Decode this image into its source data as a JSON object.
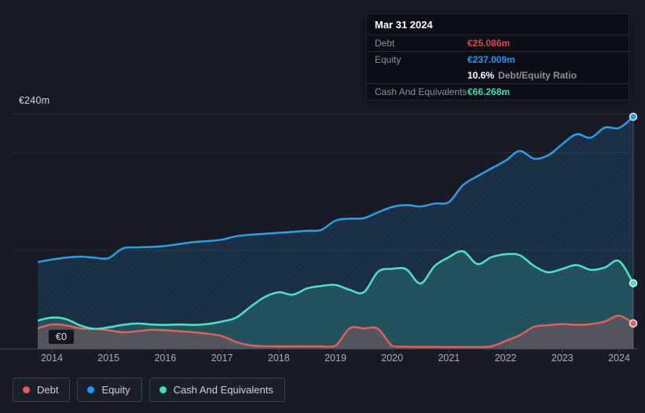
{
  "tooltip": {
    "date": "Mar 31 2024",
    "debt_label": "Debt",
    "debt_value": "€25.086m",
    "equity_label": "Equity",
    "equity_value": "€237.009m",
    "ratio_value": "10.6%",
    "ratio_suffix": "Debt/Equity Ratio",
    "cash_label": "Cash And Equivalents",
    "cash_value": "€66.268m"
  },
  "axis": {
    "y_top_label": "€240m",
    "y_zero_label": "€0",
    "x_tick_labels": [
      "2014",
      "2015",
      "2016",
      "2017",
      "2018",
      "2019",
      "2020",
      "2021",
      "2022",
      "2023",
      "2024"
    ]
  },
  "legend": {
    "items": [
      {
        "label": "Debt",
        "color": "#e25c5c"
      },
      {
        "label": "Equity",
        "color": "#2196f3"
      },
      {
        "label": "Cash And Equivalents",
        "color": "#3edfbc"
      }
    ]
  },
  "colors": {
    "background": "#161b25",
    "gridline": "rgba(255,255,255,0.08)",
    "axis_line": "#3d4652",
    "tick_label": "#a9b0b9",
    "debt_line": "#e06060",
    "equity_line": "#2e9de4",
    "cash_line": "#4fe3c1",
    "debt_fill": "rgba(224,92,92,0.26)",
    "equity_fill": "rgba(36,149,224,0.16)",
    "cash_fill": "rgba(76,222,192,0.20)",
    "hover_line": "rgba(200,210,220,0.25)",
    "dot_ring": "#e3eaf1"
  },
  "chart_data": {
    "type": "area",
    "unit": "€m",
    "ylim": [
      0,
      240
    ],
    "gridline_values": [
      240,
      200,
      100
    ],
    "legend_position": "bottom",
    "hover_x": 2024.25,
    "hover_date": "Mar 31 2024",
    "x_years": [
      2013.75,
      2014,
      2014.25,
      2014.5,
      2014.75,
      2015,
      2015.25,
      2015.5,
      2015.75,
      2016,
      2016.25,
      2016.5,
      2016.75,
      2017,
      2017.25,
      2017.5,
      2017.75,
      2018,
      2018.25,
      2018.5,
      2018.75,
      2019,
      2019.25,
      2019.5,
      2019.75,
      2020,
      2020.25,
      2020.5,
      2020.75,
      2021,
      2021.25,
      2021.5,
      2021.75,
      2022,
      2022.25,
      2022.5,
      2022.75,
      2023,
      2023.25,
      2023.5,
      2023.75,
      2024,
      2024.25
    ],
    "series": [
      {
        "name": "Debt",
        "color": "#e06060",
        "values": [
          20,
          24,
          23,
          20,
          19.5,
          18,
          16,
          17,
          18.5,
          18,
          17,
          16,
          14.5,
          12,
          6,
          2.5,
          1.5,
          1.5,
          1.5,
          1.5,
          1.5,
          2,
          20,
          20,
          19.5,
          2,
          1.2,
          1,
          1,
          0.8,
          0.8,
          0.8,
          1.5,
          7,
          13,
          21.5,
          23.3,
          24.4,
          23.5,
          24.4,
          27,
          33,
          25.086
        ]
      },
      {
        "name": "Equity",
        "color": "#2e9de4",
        "values": [
          88,
          90.5,
          92.5,
          93.5,
          92.5,
          92,
          102,
          103,
          103.5,
          104.5,
          106.5,
          108.5,
          109.5,
          111,
          114.5,
          116,
          117,
          118,
          119,
          120,
          121,
          130.5,
          132.5,
          133,
          139,
          144.5,
          146.5,
          145,
          148,
          149.5,
          167,
          176,
          184,
          192,
          202,
          194,
          197.5,
          209,
          219,
          215.5,
          226,
          225.5,
          237.009
        ]
      },
      {
        "name": "Cash And Equivalents",
        "color": "#4fe3c1",
        "values": [
          28,
          31,
          29.5,
          23,
          19.5,
          21,
          23.5,
          25,
          24,
          23.5,
          24,
          23.5,
          24.5,
          27,
          31,
          42,
          52,
          57,
          54.5,
          61,
          63.5,
          64.5,
          59.5,
          57,
          78,
          81,
          80.5,
          66,
          84,
          93,
          99,
          86,
          93,
          96,
          95,
          84,
          77.5,
          81,
          85,
          80,
          82.5,
          89,
          66.268
        ]
      }
    ],
    "final_values": {
      "Debt": 25.086,
      "Equity": 237.009,
      "Cash And Equivalents": 66.268
    }
  }
}
